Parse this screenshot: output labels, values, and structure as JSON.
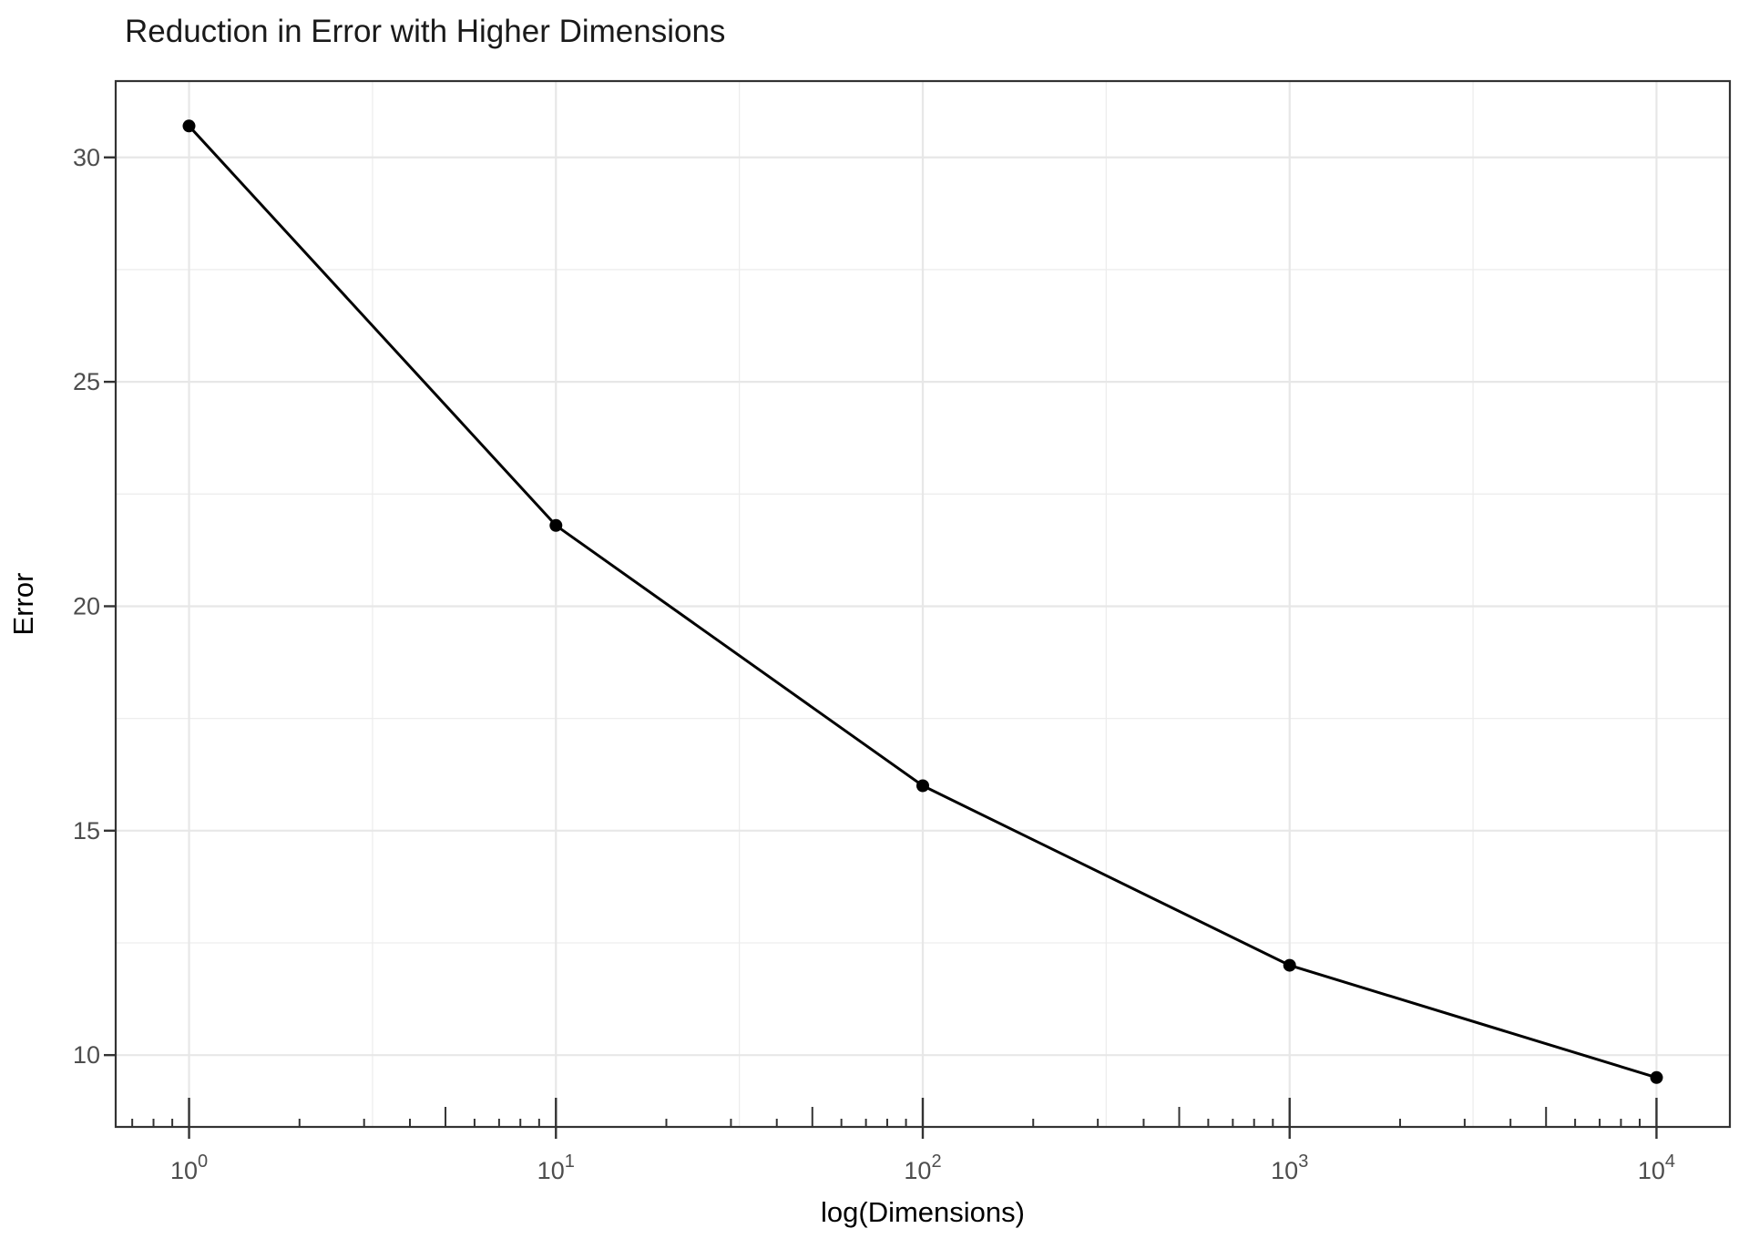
{
  "title": "Reduction in Error with Higher Dimensions",
  "chart_data": {
    "type": "line",
    "title": "Reduction in Error with Higher Dimensions",
    "xlabel": "log(Dimensions)",
    "ylabel": "Error",
    "x_scale": "log10",
    "x": [
      1,
      10,
      100,
      1000,
      10000
    ],
    "y": [
      30.7,
      21.8,
      16.0,
      12.0,
      9.5
    ],
    "x_tick_base": "10",
    "x_tick_exponents": [
      0,
      1,
      2,
      3,
      4
    ],
    "y_ticks": [
      10,
      15,
      20,
      25,
      30
    ],
    "y_minor_ticks": [
      12.5,
      17.5,
      22.5,
      27.5
    ],
    "x_minor_log": [
      0.5,
      1.5,
      2.5,
      3.5
    ],
    "xlim_log": [
      -0.2,
      4.2
    ],
    "ylim": [
      8.4,
      31.7
    ],
    "grid": true,
    "legend": false,
    "panel_border": true,
    "log_ticks_bottom": true,
    "point_marker": "filled-circle",
    "colors": {
      "background": "#FFFFFF",
      "panel_border": "#333333",
      "grid_major": "#E7E7E7",
      "grid_minor": "#EDEDED",
      "axis_text": "#4D4D4D",
      "title_text": "#1A1A1A",
      "axis_title_text": "#000000",
      "line": "#000000",
      "point": "#000000",
      "tick": "#333333"
    }
  }
}
